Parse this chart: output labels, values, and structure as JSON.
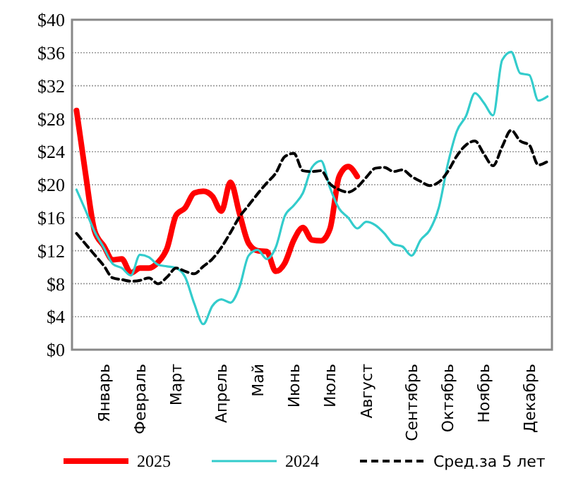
{
  "chart_data": {
    "type": "line",
    "categories": [
      null,
      null,
      null,
      "Январь",
      null,
      null,
      null,
      "Февраль",
      null,
      null,
      null,
      "Март",
      null,
      null,
      null,
      null,
      "Апрель",
      null,
      null,
      null,
      "Май",
      null,
      null,
      null,
      "Июнь",
      null,
      null,
      null,
      "Июль",
      null,
      null,
      null,
      "Август",
      null,
      null,
      null,
      null,
      "Сентябрь",
      null,
      null,
      null,
      "Октябрь",
      null,
      null,
      null,
      "Ноябрь",
      null,
      null,
      null,
      null,
      "Декабрь",
      null,
      null
    ],
    "ylim": [
      0,
      40
    ],
    "yticks": [
      {
        "value": 0,
        "label": "$0"
      },
      {
        "value": 4,
        "label": "$4"
      },
      {
        "value": 8,
        "label": "$8"
      },
      {
        "value": 12,
        "label": "$12"
      },
      {
        "value": 16,
        "label": "$16"
      },
      {
        "value": 20,
        "label": "$20"
      },
      {
        "value": 24,
        "label": "$24"
      },
      {
        "value": 28,
        "label": "$28"
      },
      {
        "value": 32,
        "label": "$32"
      },
      {
        "value": 36,
        "label": "$36"
      },
      {
        "value": 40,
        "label": "$40"
      }
    ],
    "grid": "y",
    "legend": "bottom",
    "series": [
      {
        "name": "2025",
        "color": "#ff0000",
        "line_style": "solid",
        "values": [
          29.0,
          21.3,
          14.4,
          12.6,
          10.9,
          11.0,
          9.3,
          9.9,
          9.9,
          10.6,
          12.3,
          16.3,
          17.2,
          19.0,
          19.2,
          18.6,
          16.8,
          20.3,
          16.5,
          12.9,
          12.0,
          11.9,
          9.5,
          10.5,
          13.3,
          14.8,
          13.3,
          13.2,
          14.7,
          21.0,
          22.2,
          21.0,
          null,
          null,
          null,
          null,
          null,
          null,
          null,
          null,
          null,
          null,
          null,
          null,
          null,
          null,
          null,
          null,
          null,
          null,
          null,
          null,
          null
        ]
      },
      {
        "name": "2024",
        "color": "#33cccc",
        "line_style": "solid",
        "values": [
          19.4,
          16.9,
          14.3,
          12.4,
          10.4,
          9.9,
          9.0,
          11.5,
          11.2,
          10.3,
          10.1,
          9.9,
          8.8,
          5.6,
          3.1,
          5.3,
          6.1,
          5.7,
          7.6,
          11.4,
          12.1,
          11.0,
          12.4,
          16.2,
          17.5,
          19.0,
          22.1,
          22.9,
          19.6,
          17.1,
          16.0,
          14.7,
          15.5,
          15.1,
          14.1,
          12.8,
          12.5,
          11.4,
          13.3,
          14.5,
          17.2,
          22.5,
          26.5,
          28.3,
          31.1,
          29.9,
          28.4,
          35.1,
          36.1,
          33.5,
          33.3,
          30.2,
          30.7
        ]
      },
      {
        "name": "Сред.за 5 лет",
        "color": "#000000",
        "line_style": "dashed",
        "values": [
          14.1,
          12.8,
          11.5,
          10.2,
          8.7,
          8.5,
          8.3,
          8.4,
          8.7,
          8.0,
          8.8,
          9.9,
          9.5,
          9.2,
          10.1,
          11.0,
          12.4,
          14.2,
          16.1,
          17.5,
          18.9,
          20.2,
          21.4,
          23.4,
          23.8,
          21.7,
          21.6,
          21.7,
          20.1,
          19.4,
          19.1,
          19.7,
          20.9,
          22.0,
          22.1,
          21.6,
          21.8,
          21.0,
          20.4,
          19.9,
          20.3,
          21.6,
          23.5,
          24.8,
          25.3,
          23.7,
          22.3,
          24.6,
          26.6,
          25.3,
          24.8,
          22.4,
          22.8
        ]
      }
    ]
  }
}
